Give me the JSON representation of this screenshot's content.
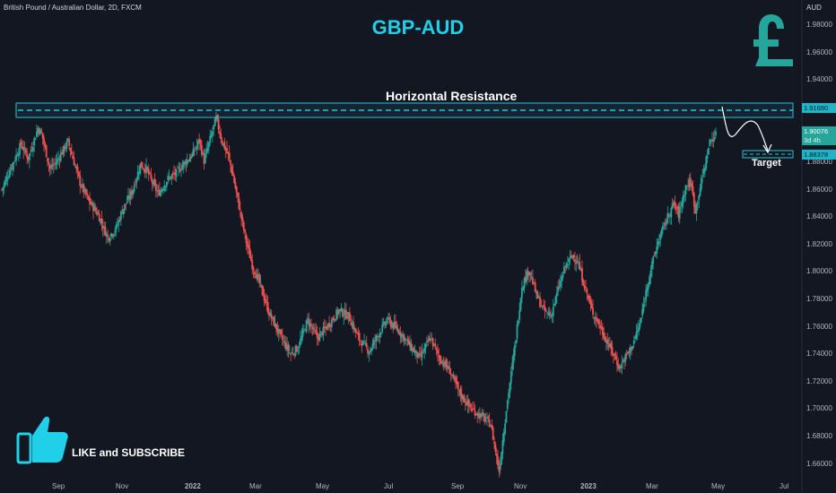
{
  "header": {
    "symbol_text": "British Pound / Australian Dollar, 2D, FXCM",
    "title": "GBP-AUD"
  },
  "annotations": {
    "resistance_label": "Horizontal Resistance",
    "target_label": "Target",
    "cta_label": "LIKE and SUBSCRIBE"
  },
  "axis": {
    "currency": "AUD",
    "y_ticks": [
      "1.98000",
      "1.96000",
      "1.94000",
      "1.92000",
      "1.90000",
      "1.88000",
      "1.86000",
      "1.84000",
      "1.82000",
      "1.80000",
      "1.78000",
      "1.76000",
      "1.74000",
      "1.72000",
      "1.70000",
      "1.68000",
      "1.66000"
    ],
    "x_ticks": [
      "Sep",
      "Nov",
      "2022",
      "Mar",
      "May",
      "Jul",
      "Sep",
      "Nov",
      "2023",
      "Mar",
      "May",
      "Jul"
    ]
  },
  "price_labels": {
    "resistance": "1.91690",
    "current": "1.90076",
    "countdown": "3d 4h",
    "target": "1.88378"
  },
  "colors": {
    "background": "#131722",
    "up": "#26a69a",
    "down": "#ef5350",
    "accent": "#1fd0e8",
    "resistance_box": "#27c4d8"
  },
  "icons": [
    "pound-sign-icon",
    "thumbs-up-icon"
  ],
  "chart_data": {
    "type": "candlestick",
    "title": "GBP-AUD",
    "subtitle": "British Pound / Australian Dollar, 2D, FXCM",
    "ylabel": "AUD",
    "ylim": [
      1.65,
      2.0
    ],
    "x_ticks": [
      "Sep",
      "Nov",
      "2022",
      "Mar",
      "May",
      "Jul",
      "Sep",
      "Nov",
      "2023",
      "Mar",
      "May",
      "Jul"
    ],
    "resistance_level": 1.9169,
    "target_level": 1.88378,
    "current_price": 1.90076,
    "close_path": [
      [
        1.86,
        0
      ],
      [
        1.875,
        7
      ],
      [
        1.893,
        16
      ],
      [
        1.883,
        22
      ],
      [
        1.905,
        30
      ],
      [
        1.901,
        33
      ],
      [
        1.875,
        40
      ],
      [
        1.88,
        45
      ],
      [
        1.895,
        55
      ],
      [
        1.865,
        65
      ],
      [
        1.852,
        72
      ],
      [
        1.842,
        80
      ],
      [
        1.825,
        88
      ],
      [
        1.832,
        95
      ],
      [
        1.845,
        100
      ],
      [
        1.858,
        108
      ],
      [
        1.878,
        115
      ],
      [
        1.875,
        120
      ],
      [
        1.865,
        125
      ],
      [
        1.857,
        130
      ],
      [
        1.868,
        138
      ],
      [
        1.872,
        145
      ],
      [
        1.878,
        150
      ],
      [
        1.885,
        158
      ],
      [
        1.896,
        164
      ],
      [
        1.881,
        168
      ],
      [
        1.912,
        178
      ],
      [
        1.895,
        183
      ],
      [
        1.885,
        188
      ],
      [
        1.87,
        192
      ],
      [
        1.848,
        197
      ],
      [
        1.822,
        203
      ],
      [
        1.805,
        208
      ],
      [
        1.792,
        214
      ],
      [
        1.77,
        222
      ],
      [
        1.752,
        232
      ],
      [
        1.74,
        240
      ],
      [
        1.745,
        246
      ],
      [
        1.765,
        254
      ],
      [
        1.752,
        262
      ],
      [
        1.76,
        270
      ],
      [
        1.772,
        280
      ],
      [
        1.768,
        288
      ],
      [
        1.752,
        296
      ],
      [
        1.742,
        305
      ],
      [
        1.755,
        313
      ],
      [
        1.765,
        320
      ],
      [
        1.757,
        330
      ],
      [
        1.745,
        340
      ],
      [
        1.737,
        347
      ],
      [
        1.752,
        356
      ],
      [
        1.738,
        363
      ],
      [
        1.728,
        372
      ],
      [
        1.712,
        380
      ],
      [
        1.7,
        390
      ],
      [
        1.695,
        398
      ],
      [
        1.689,
        406
      ],
      [
        1.655,
        413
      ],
      [
        1.7,
        419
      ],
      [
        1.745,
        426
      ],
      [
        1.79,
        432
      ],
      [
        1.802,
        438
      ],
      [
        1.783,
        444
      ],
      [
        1.772,
        450
      ],
      [
        1.768,
        456
      ],
      [
        1.787,
        462
      ],
      [
        1.804,
        468
      ],
      [
        1.812,
        474
      ],
      [
        1.808,
        478
      ],
      [
        1.79,
        484
      ],
      [
        1.772,
        490
      ],
      [
        1.762,
        496
      ],
      [
        1.75,
        502
      ],
      [
        1.74,
        508
      ],
      [
        1.73,
        513
      ],
      [
        1.738,
        518
      ],
      [
        1.745,
        523
      ],
      [
        1.762,
        530
      ],
      [
        1.795,
        537
      ],
      [
        1.822,
        545
      ],
      [
        1.838,
        552
      ],
      [
        1.85,
        558
      ],
      [
        1.842,
        562
      ],
      [
        1.862,
        568
      ],
      [
        1.866,
        572
      ],
      [
        1.845,
        576
      ],
      [
        1.862,
        580
      ],
      [
        1.878,
        584
      ],
      [
        1.895,
        588
      ],
      [
        1.9,
        593
      ]
    ]
  }
}
